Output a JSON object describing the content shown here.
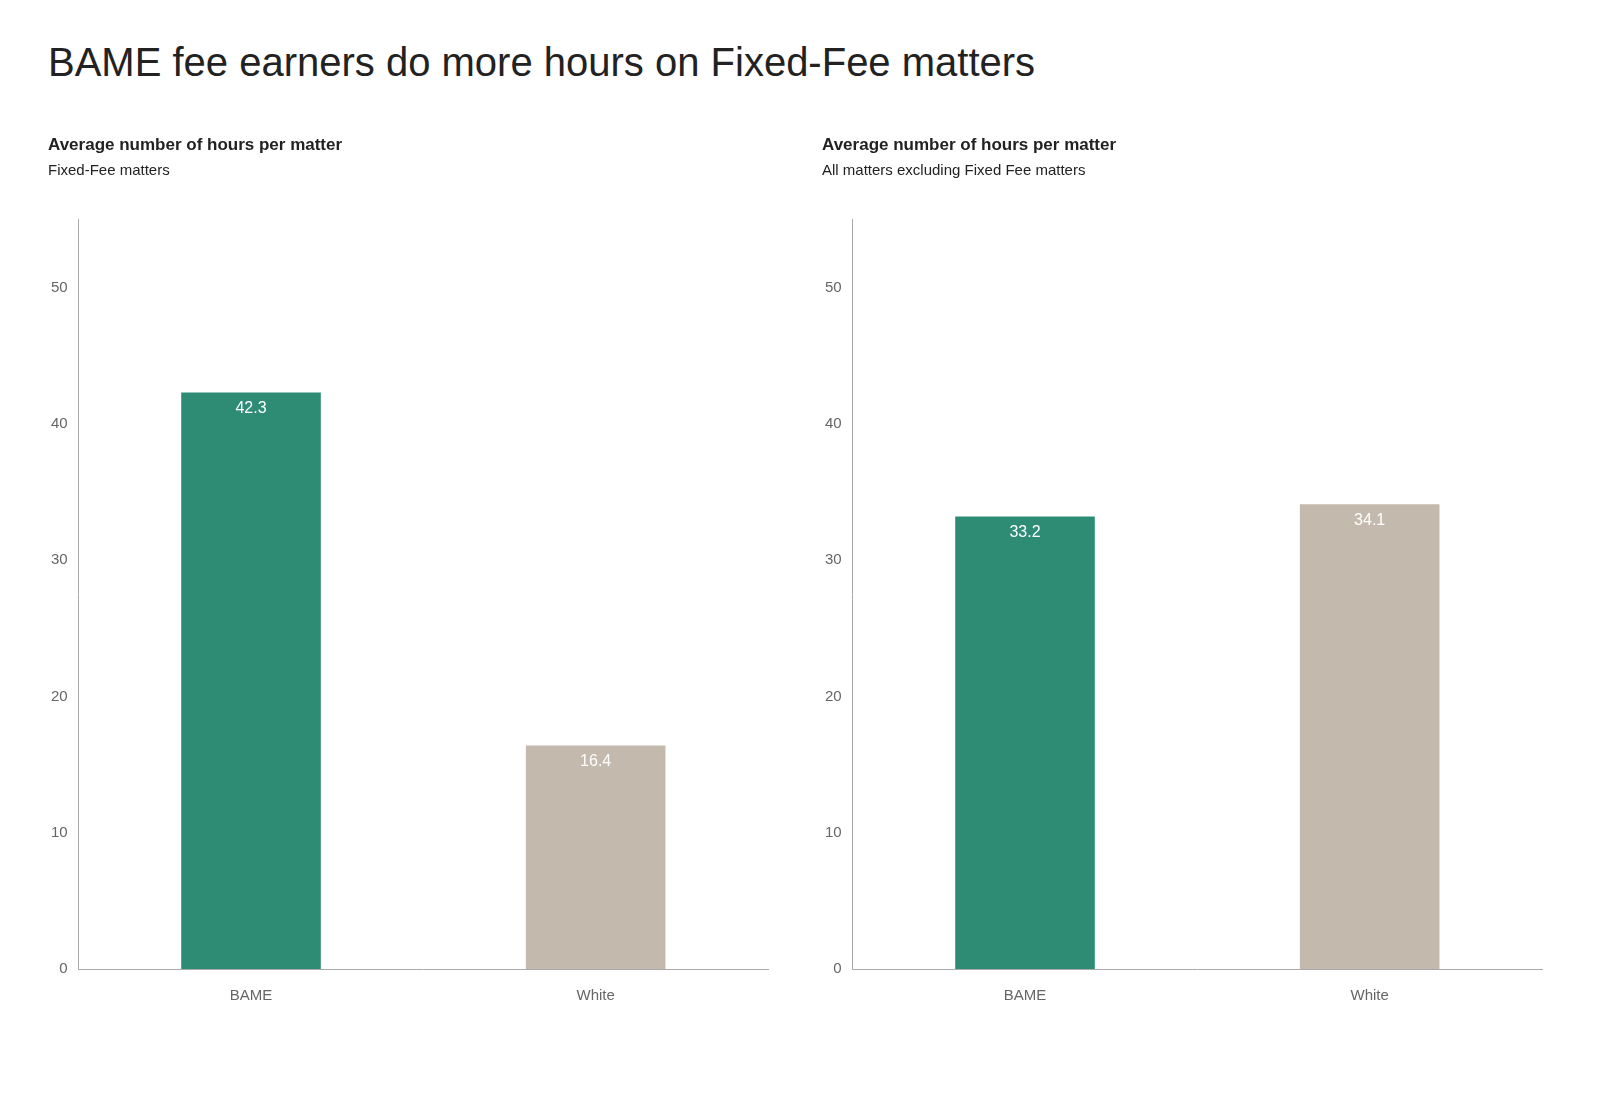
{
  "title": "BAME fee earners do more hours on Fixed-Fee matters",
  "chart_data": [
    {
      "type": "bar",
      "title": "Average number of hours per matter",
      "subtitle": "Fixed-Fee matters",
      "categories": [
        "BAME",
        "White"
      ],
      "values": [
        42.3,
        16.4
      ],
      "colors": [
        "#2e8b74",
        "#c4b9ad"
      ],
      "ylim": [
        0,
        55
      ],
      "yticks": [
        0,
        10,
        20,
        30,
        40,
        50
      ],
      "grid": false,
      "data_labels": true
    },
    {
      "type": "bar",
      "title": "Average number of hours per matter",
      "subtitle": "All matters excluding Fixed Fee matters",
      "categories": [
        "BAME",
        "White"
      ],
      "values": [
        33.2,
        34.1
      ],
      "colors": [
        "#2e8b74",
        "#c4b9ad"
      ],
      "ylim": [
        0,
        55
      ],
      "yticks": [
        0,
        10,
        20,
        30,
        40,
        50
      ],
      "grid": false,
      "data_labels": true
    }
  ]
}
